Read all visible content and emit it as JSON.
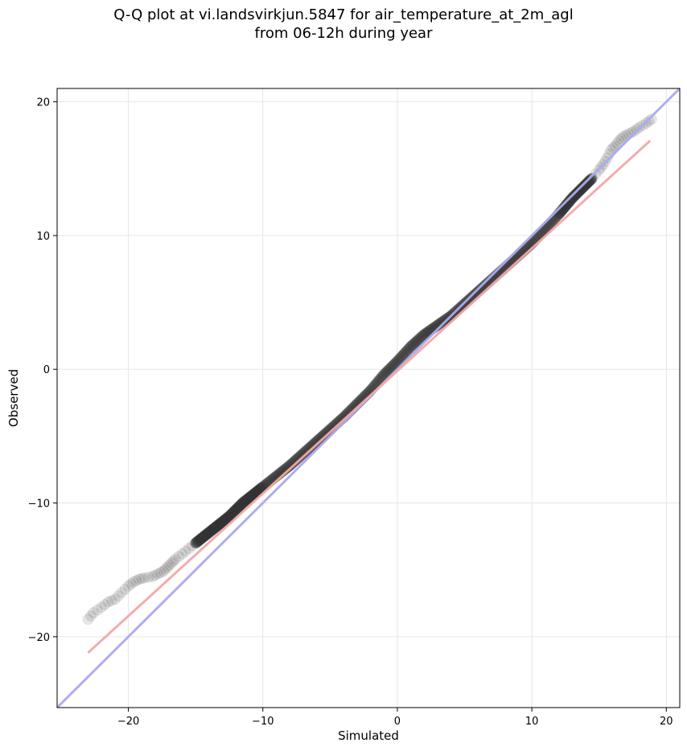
{
  "chart_data": {
    "type": "scatter",
    "title_line1": "Q-Q plot at vi.landsvirkjun.5847 for air_temperature_at_2m_agl",
    "title_line2": "from 06-12h during year",
    "xlabel": "Simulated",
    "ylabel": "Observed",
    "xlim": [
      -25.3,
      21.0
    ],
    "ylim": [
      -25.3,
      21.0
    ],
    "xticks": [
      -20,
      -10,
      0,
      10,
      20
    ],
    "yticks": [
      -20,
      -10,
      0,
      10,
      20
    ],
    "xtick_labels": [
      "−20",
      "−10",
      "0",
      "10",
      "20"
    ],
    "ytick_labels": [
      "−20",
      "−10",
      "0",
      "10",
      "20"
    ],
    "grid": true,
    "quantile_points": {
      "x": [
        -23.0,
        -22.6,
        -22.0,
        -21.5,
        -21.0,
        -20.5,
        -20.0,
        -19.6,
        -19.2,
        -18.8,
        -18.2,
        -17.8,
        -17.4,
        -17.1,
        -16.8,
        -16.5,
        -16.0,
        -15.5,
        -15.0,
        -14.5,
        -14.0,
        -13.5,
        -13.0,
        -12.5,
        -12.0,
        -11.5,
        -11.0,
        -10.5,
        -10.0,
        -9.0,
        -8.0,
        -7.0,
        -6.0,
        -5.0,
        -4.0,
        -3.0,
        -2.0,
        -1.0,
        0.0,
        1.0,
        2.0,
        3.0,
        4.0,
        5.0,
        6.0,
        7.0,
        8.0,
        9.0,
        10.0,
        11.0,
        12.0,
        12.5,
        13.0,
        13.5,
        14.0,
        14.5,
        15.0,
        15.3,
        15.6,
        15.9,
        16.2,
        16.5,
        16.8,
        17.2,
        17.6,
        18.0,
        18.5,
        18.9
      ],
      "y": [
        -18.7,
        -18.2,
        -17.8,
        -17.4,
        -17.2,
        -16.7,
        -16.2,
        -15.9,
        -15.7,
        -15.6,
        -15.5,
        -15.3,
        -15.1,
        -14.8,
        -14.5,
        -14.2,
        -13.8,
        -13.4,
        -13.0,
        -12.6,
        -12.2,
        -11.8,
        -11.4,
        -11.0,
        -10.5,
        -10.0,
        -9.6,
        -9.2,
        -8.8,
        -8.0,
        -7.2,
        -6.3,
        -5.4,
        -4.5,
        -3.6,
        -2.6,
        -1.6,
        -0.4,
        0.6,
        1.7,
        2.6,
        3.3,
        4.0,
        4.9,
        5.8,
        6.7,
        7.6,
        8.5,
        9.4,
        10.5,
        11.6,
        12.2,
        12.8,
        13.3,
        13.8,
        14.3,
        14.9,
        15.3,
        15.8,
        16.4,
        16.7,
        17.1,
        17.4,
        17.6,
        17.8,
        18.1,
        18.4,
        18.7
      ]
    },
    "reference_lines": [
      {
        "kind": "identity",
        "color": "#aaaaee",
        "x": [
          -25.3,
          21.0
        ],
        "y": [
          -25.3,
          21.0
        ]
      },
      {
        "kind": "fit",
        "color": "#f4a6a6",
        "x": [
          -23.0,
          18.8
        ],
        "y": [
          -21.2,
          17.1
        ]
      }
    ],
    "colors": {
      "points": "#333333",
      "identity_line": "#aaaaee",
      "fit_line": "#f4a6a6"
    }
  }
}
